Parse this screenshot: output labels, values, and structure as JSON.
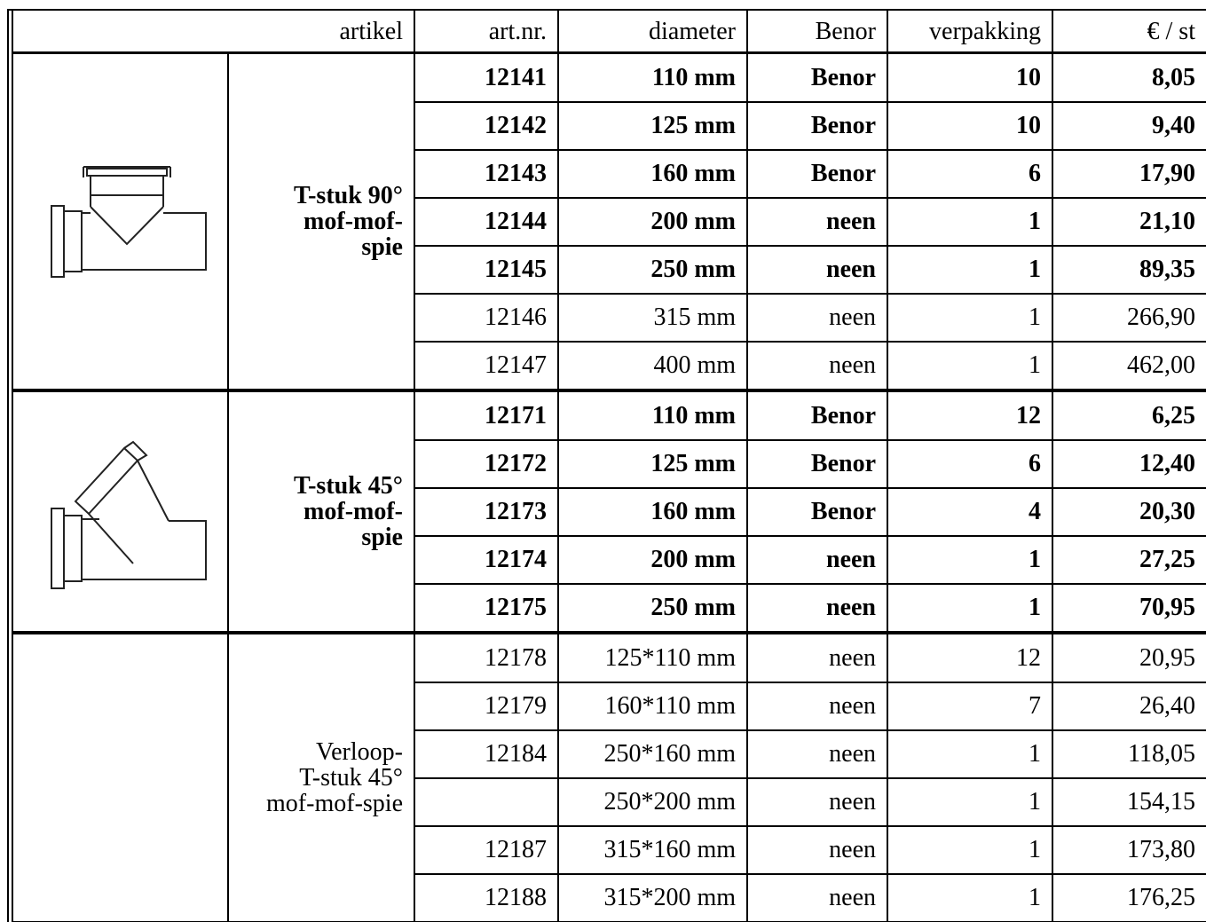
{
  "table": {
    "header": [
      "artikel",
      "art.nr.",
      "diameter",
      "Benor",
      "verpakking",
      "€ / st"
    ],
    "groups": [
      {
        "label": [
          "T-stuk 90°",
          "mof-mof-",
          "spie"
        ],
        "bold": true,
        "rows": [
          {
            "bold": true,
            "cells": [
              "12141",
              "110 mm",
              "Benor",
              "10",
              "8,05"
            ]
          },
          {
            "bold": true,
            "cells": [
              "12142",
              "125 mm",
              "Benor",
              "10",
              "9,40"
            ]
          },
          {
            "bold": true,
            "cells": [
              "12143",
              "160 mm",
              "Benor",
              "6",
              "17,90"
            ]
          },
          {
            "bold": true,
            "cells": [
              "12144",
              "200 mm",
              "neen",
              "1",
              "21,10"
            ]
          },
          {
            "bold": true,
            "cells": [
              "12145",
              "250 mm",
              "neen",
              "1",
              "89,35"
            ]
          },
          {
            "bold": false,
            "cells": [
              "12146",
              "315 mm",
              "neen",
              "1",
              "266,90"
            ]
          },
          {
            "bold": false,
            "cells": [
              "12147",
              "400 mm",
              "neen",
              "1",
              "462,00"
            ]
          }
        ]
      },
      {
        "label": [
          "T-stuk 45°",
          "mof-mof-",
          "spie"
        ],
        "bold": true,
        "rows": [
          {
            "bold": true,
            "cells": [
              "12171",
              "110 mm",
              "Benor",
              "12",
              "6,25"
            ]
          },
          {
            "bold": true,
            "cells": [
              "12172",
              "125 mm",
              "Benor",
              "6",
              "12,40"
            ]
          },
          {
            "bold": true,
            "cells": [
              "12173",
              "160 mm",
              "Benor",
              "4",
              "20,30"
            ]
          },
          {
            "bold": true,
            "cells": [
              "12174",
              "200 mm",
              "neen",
              "1",
              "27,25"
            ]
          },
          {
            "bold": true,
            "cells": [
              "12175",
              "250 mm",
              "neen",
              "1",
              "70,95"
            ]
          }
        ]
      },
      {
        "label": [
          "Verloop-",
          "T-stuk 45°",
          "mof-mof-spie"
        ],
        "bold": false,
        "rows": [
          {
            "bold": false,
            "cells": [
              "12178",
              "125*110 mm",
              "neen",
              "12",
              "20,95"
            ]
          },
          {
            "bold": false,
            "cells": [
              "12179",
              "160*110 mm",
              "neen",
              "7",
              "26,40"
            ]
          },
          {
            "bold": false,
            "cells": [
              "12184",
              "250*160 mm",
              "neen",
              "1",
              "118,05"
            ]
          },
          {
            "bold": false,
            "cells": [
              null,
              "250*200 mm",
              "neen",
              "1",
              "154,15"
            ]
          },
          {
            "bold": false,
            "cells": [
              "12187",
              "315*160 mm",
              "neen",
              "1",
              "173,80"
            ]
          },
          {
            "bold": false,
            "cells": [
              "12188",
              "315*200 mm",
              "neen",
              "1",
              "176,25"
            ]
          }
        ]
      }
    ]
  }
}
